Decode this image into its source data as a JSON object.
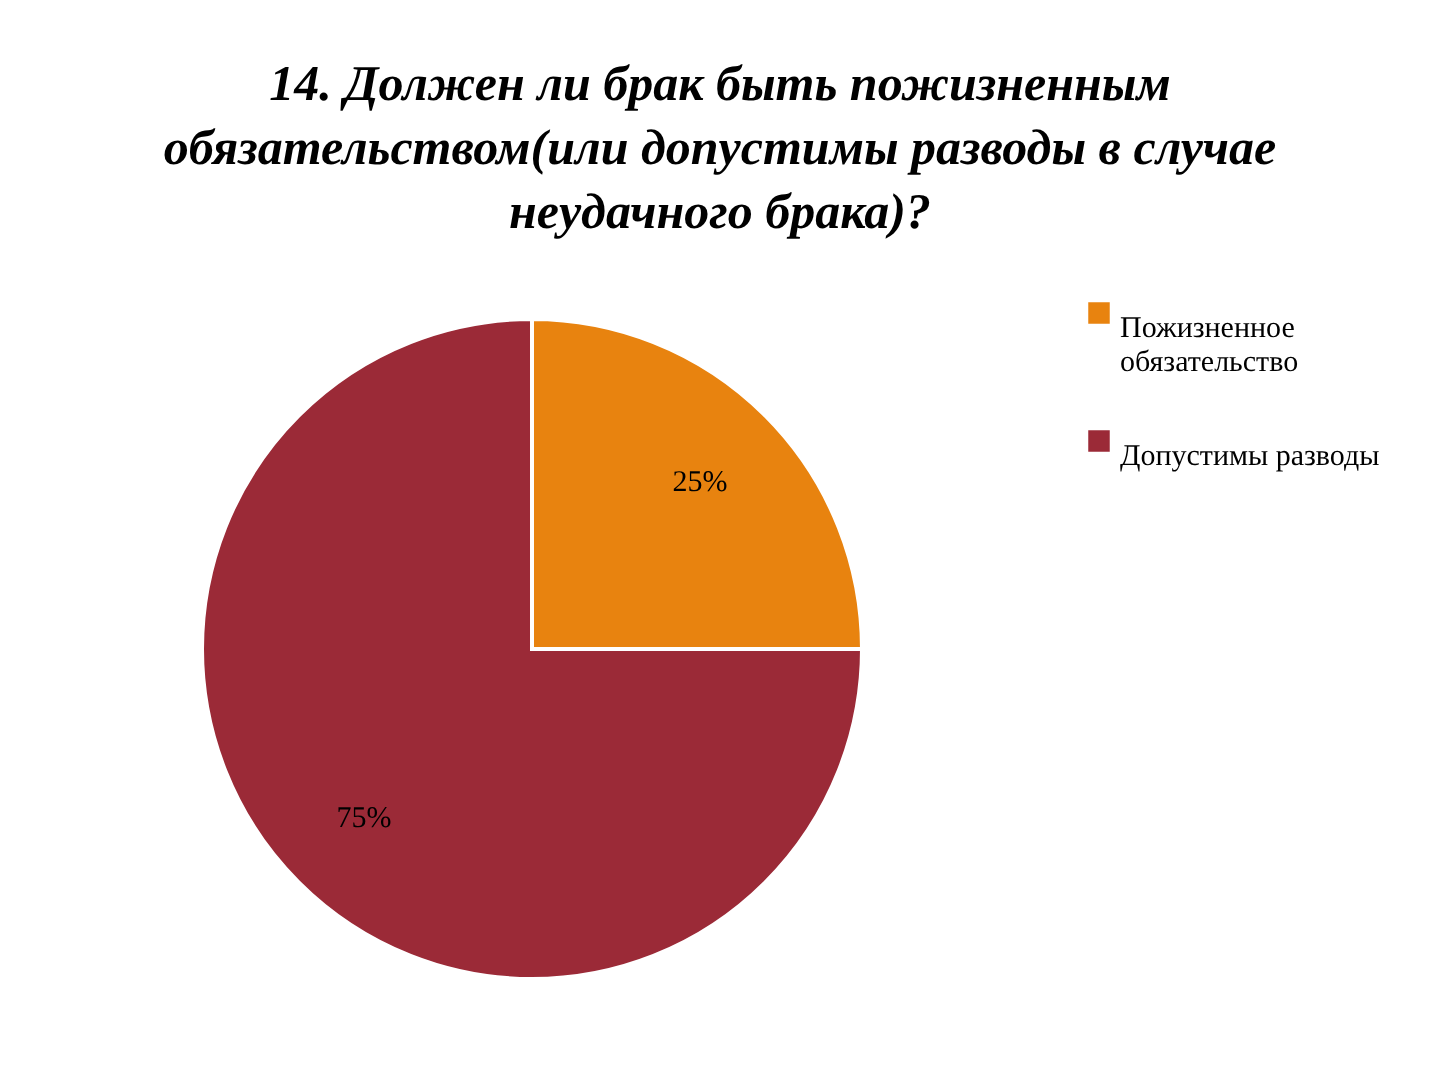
{
  "chart_data": {
    "type": "pie",
    "title": "14. Должен ли брак быть пожизненным обязательством(или допустимы разводы в случае неудачного брака)?",
    "categories": [
      "Пожизненное обязательство",
      "Допустимы разводы"
    ],
    "values": [
      25,
      75
    ],
    "colors": [
      "#e8830f",
      "#9b2a37"
    ],
    "value_labels": [
      "25%",
      "75%"
    ],
    "legend": "right"
  }
}
